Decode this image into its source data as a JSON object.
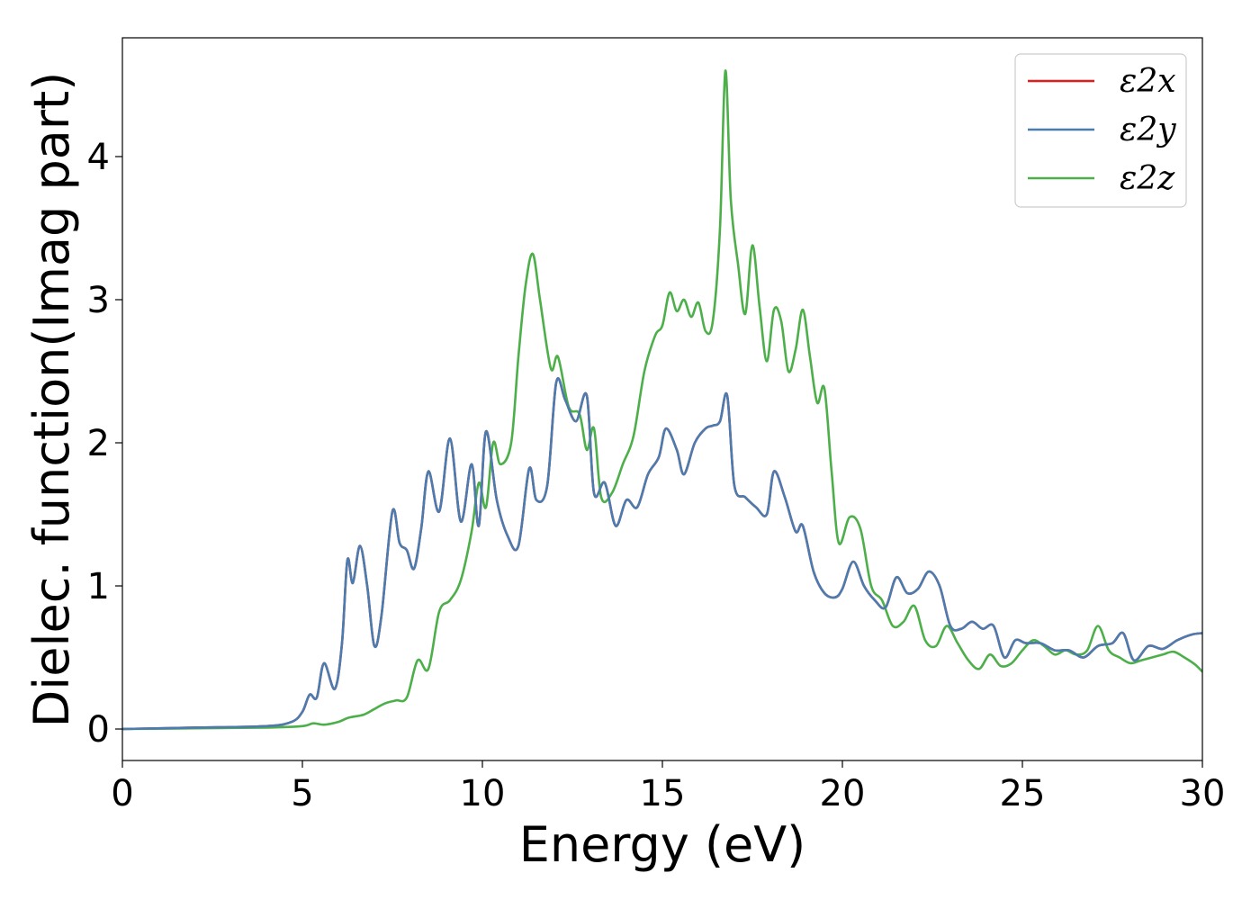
{
  "chart_data": {
    "type": "line",
    "title": "",
    "xlabel": "Energy (eV)",
    "ylabel": "Dielec. function(Imag part)",
    "xlim": [
      0,
      30
    ],
    "ylim": [
      -0.22,
      4.83
    ],
    "xticks": [
      0,
      5,
      10,
      15,
      20,
      25,
      30
    ],
    "yticks": [
      0,
      1,
      2,
      3,
      4
    ],
    "grid": false,
    "legend_position": "top-right",
    "series": [
      {
        "name": "ε2x",
        "color": "#e41a1c",
        "x": [
          0,
          2,
          4,
          4.7,
          5,
          5.2,
          5.4,
          5.6,
          5.9,
          6.1,
          6.25,
          6.4,
          6.6,
          6.8,
          7,
          7.2,
          7.5,
          7.7,
          7.9,
          8.1,
          8.3,
          8.5,
          8.8,
          9.1,
          9.4,
          9.7,
          9.9,
          10.1,
          10.4,
          10.7,
          11,
          11.3,
          11.5,
          11.8,
          12.05,
          12.3,
          12.6,
          12.9,
          13.1,
          13.4,
          13.7,
          14,
          14.3,
          14.6,
          14.9,
          15.1,
          15.4,
          15.6,
          15.9,
          16.2,
          16.4,
          16.6,
          16.8,
          17,
          17.3,
          17.6,
          17.9,
          18.1,
          18.4,
          18.7,
          18.9,
          19.2,
          19.5,
          19.8,
          20,
          20.3,
          20.6,
          20.9,
          21.2,
          21.5,
          21.8,
          22.1,
          22.4,
          22.7,
          23,
          23.3,
          23.6,
          23.9,
          24.2,
          24.5,
          24.8,
          25.1,
          25.5,
          25.9,
          26.3,
          26.7,
          27.1,
          27.5,
          27.8,
          28.1,
          28.5,
          28.9,
          29.3,
          29.7,
          30
        ],
        "values": [
          0,
          0.01,
          0.02,
          0.05,
          0.12,
          0.24,
          0.22,
          0.46,
          0.28,
          0.6,
          1.18,
          1.02,
          1.28,
          1.0,
          0.58,
          0.8,
          1.52,
          1.3,
          1.25,
          1.12,
          1.4,
          1.8,
          1.52,
          2.03,
          1.45,
          1.85,
          1.42,
          2.08,
          1.6,
          1.35,
          1.28,
          1.82,
          1.6,
          1.7,
          2.42,
          2.3,
          2.15,
          2.33,
          1.65,
          1.72,
          1.42,
          1.6,
          1.55,
          1.78,
          1.9,
          2.1,
          1.95,
          1.78,
          2.0,
          2.1,
          2.12,
          2.15,
          2.33,
          1.7,
          1.62,
          1.55,
          1.5,
          1.8,
          1.62,
          1.38,
          1.42,
          1.1,
          0.95,
          0.92,
          0.98,
          1.17,
          1.0,
          0.9,
          0.85,
          1.06,
          0.95,
          0.98,
          1.1,
          1.0,
          0.72,
          0.7,
          0.75,
          0.7,
          0.72,
          0.5,
          0.62,
          0.6,
          0.6,
          0.55,
          0.55,
          0.5,
          0.58,
          0.6,
          0.67,
          0.48,
          0.58,
          0.56,
          0.62,
          0.66,
          0.67
        ]
      },
      {
        "name": "ε2y",
        "color": "#4a7cb0",
        "x": [
          0,
          2,
          4,
          4.7,
          5,
          5.2,
          5.4,
          5.6,
          5.9,
          6.1,
          6.25,
          6.4,
          6.6,
          6.8,
          7,
          7.2,
          7.5,
          7.7,
          7.9,
          8.1,
          8.3,
          8.5,
          8.8,
          9.1,
          9.4,
          9.7,
          9.9,
          10.1,
          10.4,
          10.7,
          11,
          11.3,
          11.5,
          11.8,
          12.05,
          12.3,
          12.6,
          12.9,
          13.1,
          13.4,
          13.7,
          14,
          14.3,
          14.6,
          14.9,
          15.1,
          15.4,
          15.6,
          15.9,
          16.2,
          16.4,
          16.6,
          16.8,
          17,
          17.3,
          17.6,
          17.9,
          18.1,
          18.4,
          18.7,
          18.9,
          19.2,
          19.5,
          19.8,
          20,
          20.3,
          20.6,
          20.9,
          21.2,
          21.5,
          21.8,
          22.1,
          22.4,
          22.7,
          23,
          23.3,
          23.6,
          23.9,
          24.2,
          24.5,
          24.8,
          25.1,
          25.5,
          25.9,
          26.3,
          26.7,
          27.1,
          27.5,
          27.8,
          28.1,
          28.5,
          28.9,
          29.3,
          29.7,
          30
        ],
        "values": [
          0,
          0.01,
          0.02,
          0.05,
          0.12,
          0.24,
          0.22,
          0.46,
          0.28,
          0.6,
          1.18,
          1.02,
          1.28,
          1.0,
          0.58,
          0.8,
          1.52,
          1.3,
          1.25,
          1.12,
          1.4,
          1.8,
          1.52,
          2.03,
          1.45,
          1.85,
          1.42,
          2.08,
          1.6,
          1.35,
          1.28,
          1.82,
          1.6,
          1.7,
          2.42,
          2.3,
          2.15,
          2.33,
          1.65,
          1.72,
          1.42,
          1.6,
          1.55,
          1.78,
          1.9,
          2.1,
          1.95,
          1.78,
          2.0,
          2.1,
          2.12,
          2.15,
          2.33,
          1.7,
          1.62,
          1.55,
          1.5,
          1.8,
          1.62,
          1.38,
          1.42,
          1.1,
          0.95,
          0.92,
          0.98,
          1.17,
          1.0,
          0.9,
          0.85,
          1.06,
          0.95,
          0.98,
          1.1,
          1.0,
          0.72,
          0.7,
          0.75,
          0.7,
          0.72,
          0.5,
          0.62,
          0.6,
          0.6,
          0.55,
          0.55,
          0.5,
          0.58,
          0.6,
          0.67,
          0.48,
          0.58,
          0.56,
          0.62,
          0.66,
          0.67
        ]
      },
      {
        "name": "ε2z",
        "color": "#4daf4a",
        "x": [
          0,
          2,
          4,
          5,
          5.3,
          5.6,
          6,
          6.3,
          6.7,
          7,
          7.3,
          7.6,
          7.9,
          8.2,
          8.5,
          8.8,
          9.1,
          9.4,
          9.7,
          9.9,
          10.1,
          10.3,
          10.5,
          10.8,
          11,
          11.2,
          11.4,
          11.6,
          11.9,
          12.1,
          12.4,
          12.7,
          12.9,
          13.1,
          13.3,
          13.6,
          13.9,
          14.2,
          14.5,
          14.8,
          15.0,
          15.2,
          15.4,
          15.6,
          15.8,
          16,
          16.2,
          16.4,
          16.6,
          16.75,
          16.9,
          17.1,
          17.3,
          17.5,
          17.7,
          17.9,
          18.1,
          18.3,
          18.5,
          18.7,
          18.9,
          19.1,
          19.3,
          19.5,
          19.7,
          19.9,
          20.2,
          20.5,
          20.8,
          21.1,
          21.4,
          21.7,
          22,
          22.3,
          22.6,
          22.9,
          23.2,
          23.5,
          23.8,
          24.1,
          24.4,
          24.7,
          25,
          25.3,
          25.6,
          25.9,
          26.2,
          26.5,
          26.8,
          27.1,
          27.4,
          27.7,
          28,
          28.3,
          28.6,
          28.9,
          29.2,
          29.5,
          29.8,
          30
        ],
        "values": [
          0,
          0.005,
          0.01,
          0.02,
          0.04,
          0.03,
          0.05,
          0.08,
          0.1,
          0.14,
          0.18,
          0.2,
          0.22,
          0.48,
          0.42,
          0.82,
          0.9,
          1.04,
          1.38,
          1.72,
          1.55,
          2.0,
          1.85,
          2.0,
          2.6,
          3.1,
          3.32,
          3.0,
          2.52,
          2.6,
          2.25,
          2.2,
          1.95,
          2.1,
          1.62,
          1.65,
          1.85,
          2.05,
          2.5,
          2.75,
          2.82,
          3.05,
          2.92,
          3.0,
          2.88,
          2.98,
          2.78,
          2.85,
          3.5,
          4.6,
          3.7,
          3.25,
          2.9,
          3.38,
          2.95,
          2.57,
          2.93,
          2.85,
          2.5,
          2.65,
          2.93,
          2.6,
          2.28,
          2.38,
          1.8,
          1.3,
          1.48,
          1.4,
          1.0,
          0.9,
          0.72,
          0.75,
          0.86,
          0.62,
          0.58,
          0.72,
          0.6,
          0.48,
          0.42,
          0.52,
          0.44,
          0.46,
          0.55,
          0.62,
          0.58,
          0.52,
          0.55,
          0.52,
          0.55,
          0.72,
          0.55,
          0.5,
          0.46,
          0.48,
          0.5,
          0.52,
          0.54,
          0.5,
          0.45,
          0.4
        ]
      }
    ]
  }
}
